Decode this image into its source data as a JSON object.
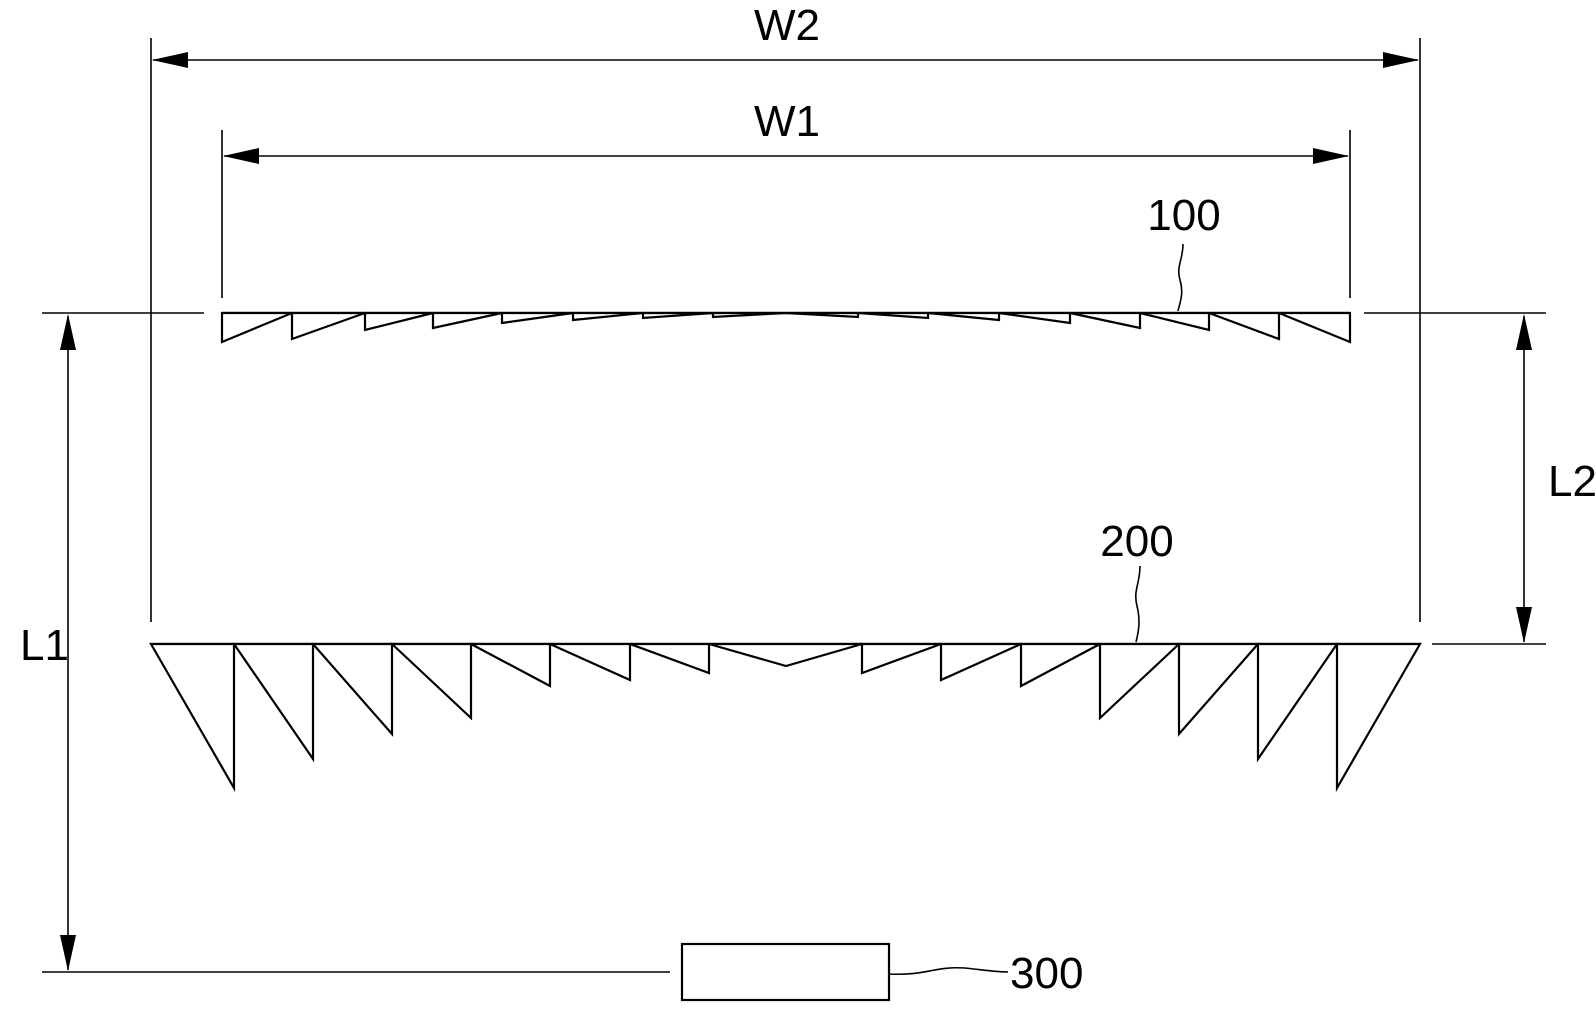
{
  "labels": {
    "w2": "W2",
    "w1": "W1",
    "l1": "L1",
    "l2": "L2",
    "lens_upper": "100",
    "lens_lower": "200",
    "source": "300"
  },
  "colors": {
    "line": "#000000",
    "background": "#ffffff"
  }
}
